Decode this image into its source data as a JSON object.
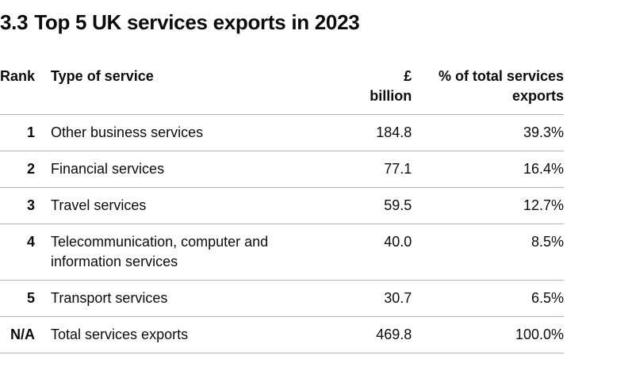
{
  "heading": {
    "number": "3.3",
    "text": "Top 5 UK services exports in 2023"
  },
  "table": {
    "headers": {
      "rank": "Rank",
      "type": "Type of service",
      "value_line1": "£",
      "value_line2": "billion",
      "pct_line1": "% of total services",
      "pct_line2": "exports"
    },
    "rows": [
      {
        "rank": "1",
        "type": "Other business services",
        "type_line2": "",
        "value": "184.8",
        "pct": "39.3%"
      },
      {
        "rank": "2",
        "type": "Financial services",
        "type_line2": "",
        "value": "77.1",
        "pct": "16.4%"
      },
      {
        "rank": "3",
        "type": "Travel services",
        "type_line2": "",
        "value": "59.5",
        "pct": "12.7%"
      },
      {
        "rank": "4",
        "type": "Telecommunication, computer and",
        "type_line2": "information services",
        "value": "40.0",
        "pct": "8.5%"
      },
      {
        "rank": "5",
        "type": "Transport services",
        "type_line2": "",
        "value": "30.7",
        "pct": "6.5%"
      },
      {
        "rank": "N/A",
        "type": "Total services exports",
        "type_line2": "",
        "value": "469.8",
        "pct": "100.0%"
      }
    ]
  },
  "colors": {
    "text": "#0b0c0c",
    "border": "#b1b4b6",
    "link": "#1d70b8"
  }
}
